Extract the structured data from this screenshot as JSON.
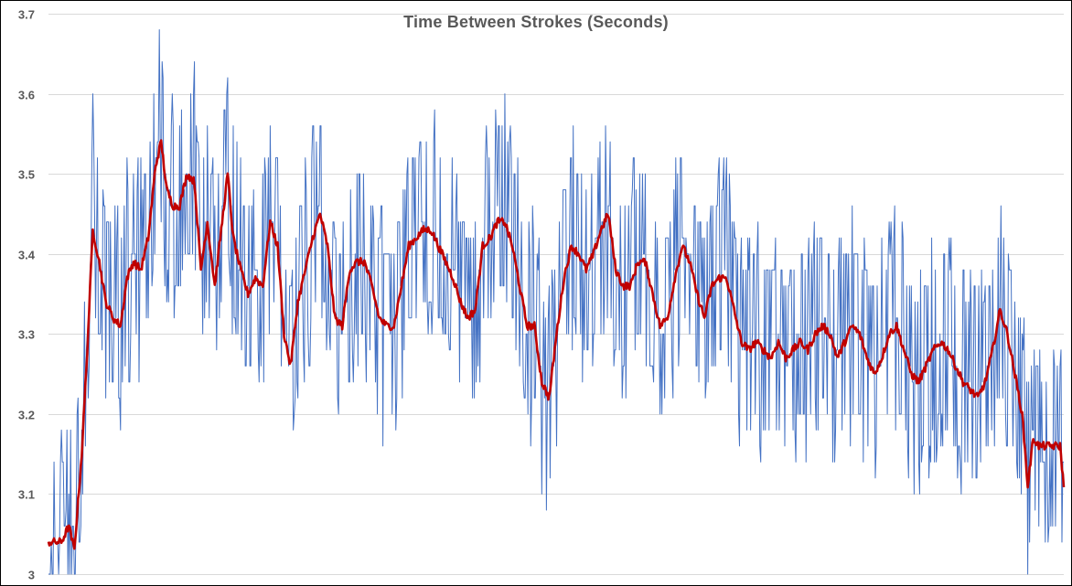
{
  "chart_data": {
    "type": "line",
    "title": "Time Between Strokes (Seconds)",
    "xlabel": "",
    "ylabel": "",
    "ylim": [
      3.0,
      3.7
    ],
    "y_ticks": [
      "3",
      "3.1",
      "3.2",
      "3.3",
      "3.4",
      "3.5",
      "3.6",
      "3.7"
    ],
    "grid": true,
    "x_points": 1100,
    "series": [
      {
        "color": "#4472C4",
        "style": "raw, thin",
        "keypoints": [
          [
            0,
            3.04
          ],
          [
            14,
            3.03
          ],
          [
            22,
            3.1
          ],
          [
            28,
            3.05
          ],
          [
            36,
            3.18
          ],
          [
            42,
            3.3
          ],
          [
            48,
            3.45
          ],
          [
            55,
            3.4
          ],
          [
            62,
            3.35
          ],
          [
            70,
            3.33
          ],
          [
            78,
            3.32
          ],
          [
            85,
            3.38
          ],
          [
            92,
            3.4
          ],
          [
            100,
            3.38
          ],
          [
            108,
            3.42
          ],
          [
            116,
            3.52
          ],
          [
            122,
            3.55
          ],
          [
            128,
            3.48
          ],
          [
            135,
            3.46
          ],
          [
            142,
            3.46
          ],
          [
            150,
            3.5
          ],
          [
            158,
            3.5
          ],
          [
            165,
            3.38
          ],
          [
            172,
            3.45
          ],
          [
            180,
            3.36
          ],
          [
            187,
            3.44
          ],
          [
            194,
            3.52
          ],
          [
            200,
            3.42
          ],
          [
            208,
            3.38
          ],
          [
            216,
            3.35
          ],
          [
            224,
            3.38
          ],
          [
            232,
            3.36
          ],
          [
            240,
            3.45
          ],
          [
            248,
            3.42
          ],
          [
            255,
            3.3
          ],
          [
            262,
            3.25
          ],
          [
            270,
            3.35
          ],
          [
            278,
            3.38
          ],
          [
            286,
            3.42
          ],
          [
            294,
            3.46
          ],
          [
            302,
            3.42
          ],
          [
            310,
            3.32
          ],
          [
            318,
            3.3
          ],
          [
            326,
            3.38
          ],
          [
            334,
            3.4
          ],
          [
            342,
            3.4
          ],
          [
            350,
            3.36
          ],
          [
            358,
            3.32
          ],
          [
            366,
            3.3
          ],
          [
            374,
            3.3
          ],
          [
            382,
            3.36
          ],
          [
            390,
            3.42
          ],
          [
            398,
            3.42
          ],
          [
            406,
            3.44
          ],
          [
            414,
            3.44
          ],
          [
            422,
            3.42
          ],
          [
            430,
            3.4
          ],
          [
            438,
            3.38
          ],
          [
            446,
            3.34
          ],
          [
            454,
            3.32
          ],
          [
            462,
            3.33
          ],
          [
            470,
            3.42
          ],
          [
            478,
            3.42
          ],
          [
            486,
            3.45
          ],
          [
            494,
            3.45
          ],
          [
            502,
            3.42
          ],
          [
            510,
            3.36
          ],
          [
            518,
            3.3
          ],
          [
            526,
            3.32
          ],
          [
            534,
            3.24
          ],
          [
            542,
            3.21
          ],
          [
            550,
            3.3
          ],
          [
            558,
            3.38
          ],
          [
            566,
            3.42
          ],
          [
            574,
            3.4
          ],
          [
            582,
            3.38
          ],
          [
            590,
            3.4
          ],
          [
            598,
            3.44
          ],
          [
            606,
            3.46
          ],
          [
            614,
            3.38
          ],
          [
            622,
            3.36
          ],
          [
            630,
            3.36
          ],
          [
            638,
            3.4
          ],
          [
            646,
            3.4
          ],
          [
            654,
            3.35
          ],
          [
            662,
            3.3
          ],
          [
            670,
            3.32
          ],
          [
            678,
            3.38
          ],
          [
            686,
            3.42
          ],
          [
            694,
            3.4
          ],
          [
            702,
            3.35
          ],
          [
            710,
            3.32
          ],
          [
            718,
            3.36
          ],
          [
            726,
            3.37
          ],
          [
            734,
            3.37
          ],
          [
            742,
            3.33
          ],
          [
            750,
            3.28
          ],
          [
            758,
            3.28
          ],
          [
            766,
            3.3
          ],
          [
            774,
            3.28
          ],
          [
            782,
            3.27
          ],
          [
            790,
            3.29
          ],
          [
            798,
            3.26
          ],
          [
            806,
            3.28
          ],
          [
            814,
            3.3
          ],
          [
            822,
            3.28
          ],
          [
            830,
            3.31
          ],
          [
            838,
            3.32
          ],
          [
            846,
            3.3
          ],
          [
            854,
            3.27
          ],
          [
            862,
            3.3
          ],
          [
            870,
            3.31
          ],
          [
            878,
            3.3
          ],
          [
            886,
            3.27
          ],
          [
            894,
            3.25
          ],
          [
            902,
            3.27
          ],
          [
            910,
            3.3
          ],
          [
            918,
            3.32
          ],
          [
            926,
            3.28
          ],
          [
            934,
            3.25
          ],
          [
            942,
            3.24
          ],
          [
            950,
            3.26
          ],
          [
            958,
            3.28
          ],
          [
            966,
            3.3
          ],
          [
            974,
            3.28
          ],
          [
            982,
            3.26
          ],
          [
            990,
            3.24
          ],
          [
            998,
            3.23
          ],
          [
            1006,
            3.22
          ],
          [
            1014,
            3.25
          ],
          [
            1022,
            3.28
          ],
          [
            1030,
            3.33
          ],
          [
            1038,
            3.3
          ],
          [
            1046,
            3.24
          ],
          [
            1054,
            3.2
          ],
          [
            1060,
            3.12
          ],
          [
            1066,
            3.18
          ],
          [
            1072,
            3.15
          ],
          [
            1080,
            3.14
          ],
          [
            1088,
            3.17
          ],
          [
            1095,
            3.15
          ],
          [
            1099,
            3.14
          ]
        ]
      },
      {
        "color": "#C00000",
        "style": "moving average, thick",
        "keypoints": [
          [
            0,
            3.04
          ],
          [
            14,
            3.04
          ],
          [
            22,
            3.06
          ],
          [
            28,
            3.03
          ],
          [
            36,
            3.15
          ],
          [
            42,
            3.28
          ],
          [
            48,
            3.43
          ],
          [
            55,
            3.39
          ],
          [
            62,
            3.34
          ],
          [
            70,
            3.32
          ],
          [
            78,
            3.31
          ],
          [
            85,
            3.37
          ],
          [
            92,
            3.39
          ],
          [
            100,
            3.38
          ],
          [
            108,
            3.42
          ],
          [
            116,
            3.51
          ],
          [
            122,
            3.54
          ],
          [
            128,
            3.48
          ],
          [
            135,
            3.46
          ],
          [
            142,
            3.46
          ],
          [
            150,
            3.5
          ],
          [
            158,
            3.49
          ],
          [
            165,
            3.38
          ],
          [
            172,
            3.44
          ],
          [
            180,
            3.36
          ],
          [
            187,
            3.43
          ],
          [
            194,
            3.5
          ],
          [
            200,
            3.42
          ],
          [
            208,
            3.38
          ],
          [
            216,
            3.35
          ],
          [
            224,
            3.37
          ],
          [
            232,
            3.36
          ],
          [
            240,
            3.44
          ],
          [
            248,
            3.41
          ],
          [
            255,
            3.3
          ],
          [
            262,
            3.26
          ],
          [
            270,
            3.34
          ],
          [
            278,
            3.38
          ],
          [
            286,
            3.42
          ],
          [
            294,
            3.45
          ],
          [
            302,
            3.41
          ],
          [
            310,
            3.32
          ],
          [
            318,
            3.31
          ],
          [
            326,
            3.38
          ],
          [
            334,
            3.39
          ],
          [
            342,
            3.39
          ],
          [
            350,
            3.36
          ],
          [
            358,
            3.32
          ],
          [
            366,
            3.31
          ],
          [
            374,
            3.31
          ],
          [
            382,
            3.36
          ],
          [
            390,
            3.41
          ],
          [
            398,
            3.42
          ],
          [
            406,
            3.43
          ],
          [
            414,
            3.43
          ],
          [
            422,
            3.41
          ],
          [
            430,
            3.39
          ],
          [
            438,
            3.37
          ],
          [
            446,
            3.34
          ],
          [
            454,
            3.32
          ],
          [
            462,
            3.33
          ],
          [
            470,
            3.41
          ],
          [
            478,
            3.42
          ],
          [
            486,
            3.44
          ],
          [
            494,
            3.44
          ],
          [
            502,
            3.41
          ],
          [
            510,
            3.36
          ],
          [
            518,
            3.31
          ],
          [
            526,
            3.31
          ],
          [
            534,
            3.24
          ],
          [
            542,
            3.22
          ],
          [
            550,
            3.3
          ],
          [
            558,
            3.37
          ],
          [
            566,
            3.41
          ],
          [
            574,
            3.4
          ],
          [
            582,
            3.38
          ],
          [
            590,
            3.4
          ],
          [
            598,
            3.43
          ],
          [
            606,
            3.45
          ],
          [
            614,
            3.38
          ],
          [
            622,
            3.36
          ],
          [
            630,
            3.36
          ],
          [
            638,
            3.39
          ],
          [
            646,
            3.39
          ],
          [
            654,
            3.35
          ],
          [
            662,
            3.31
          ],
          [
            670,
            3.32
          ],
          [
            678,
            3.37
          ],
          [
            686,
            3.41
          ],
          [
            694,
            3.39
          ],
          [
            702,
            3.35
          ],
          [
            710,
            3.32
          ],
          [
            718,
            3.36
          ],
          [
            726,
            3.37
          ],
          [
            734,
            3.37
          ],
          [
            742,
            3.33
          ],
          [
            750,
            3.29
          ],
          [
            758,
            3.28
          ],
          [
            766,
            3.29
          ],
          [
            774,
            3.28
          ],
          [
            782,
            3.27
          ],
          [
            790,
            3.29
          ],
          [
            798,
            3.27
          ],
          [
            806,
            3.28
          ],
          [
            814,
            3.29
          ],
          [
            822,
            3.28
          ],
          [
            830,
            3.3
          ],
          [
            838,
            3.31
          ],
          [
            846,
            3.3
          ],
          [
            854,
            3.27
          ],
          [
            862,
            3.29
          ],
          [
            870,
            3.31
          ],
          [
            878,
            3.3
          ],
          [
            886,
            3.27
          ],
          [
            894,
            3.25
          ],
          [
            902,
            3.27
          ],
          [
            910,
            3.3
          ],
          [
            918,
            3.31
          ],
          [
            926,
            3.28
          ],
          [
            934,
            3.25
          ],
          [
            942,
            3.24
          ],
          [
            950,
            3.26
          ],
          [
            958,
            3.28
          ],
          [
            966,
            3.29
          ],
          [
            974,
            3.28
          ],
          [
            982,
            3.26
          ],
          [
            990,
            3.24
          ],
          [
            998,
            3.23
          ],
          [
            1006,
            3.22
          ],
          [
            1014,
            3.24
          ],
          [
            1022,
            3.28
          ],
          [
            1030,
            3.33
          ],
          [
            1038,
            3.3
          ],
          [
            1046,
            3.25
          ],
          [
            1054,
            3.2
          ],
          [
            1060,
            3.11
          ],
          [
            1066,
            3.17
          ],
          [
            1072,
            3.16
          ],
          [
            1080,
            3.16
          ],
          [
            1088,
            3.16
          ],
          [
            1095,
            3.16
          ],
          [
            1099,
            3.11
          ]
        ]
      }
    ]
  }
}
